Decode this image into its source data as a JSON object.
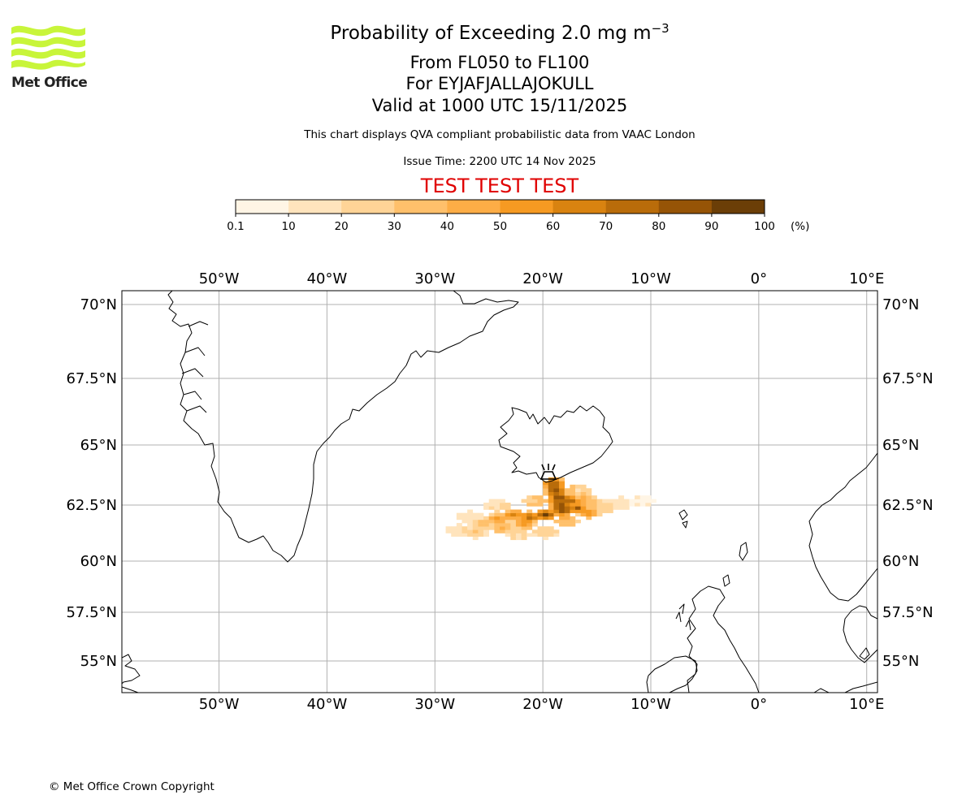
{
  "header": {
    "logo_text": "Met Office",
    "title_main": "Probability of Exceeding 2.0 mg m",
    "title_sup": "−3",
    "title_levels": "From FL050 to FL100",
    "title_volcano": "For EYJAFJALLAJOKULL",
    "title_valid": "Valid at 1000 UTC 15/11/2025",
    "subtitle": "This chart displays QVA compliant probabilistic data from VAAC London",
    "issue_time": "Issue Time: 2200 UTC 14 Nov 2025",
    "warning": "TEST TEST TEST"
  },
  "colorbar": {
    "ticks": [
      "0.1",
      "10",
      "20",
      "30",
      "40",
      "50",
      "60",
      "70",
      "80",
      "90",
      "100"
    ],
    "unit": "(%)",
    "colors": [
      "#fff5e5",
      "#ffe4bd",
      "#ffd497",
      "#ffc06b",
      "#fdad46",
      "#f69a22",
      "#d98310",
      "#b96c0a",
      "#965406",
      "#6b3e07"
    ]
  },
  "map": {
    "lon_labels": [
      "50°W",
      "40°W",
      "30°W",
      "20°W",
      "10°W",
      "0°",
      "10°E"
    ],
    "lat_labels": [
      "70°N",
      "67.5°N",
      "65°N",
      "62.5°N",
      "60°N",
      "57.5°N",
      "55°N"
    ],
    "volcano_icon": "volcano-icon",
    "colors": {
      "grid": "#b0b0b0",
      "coast": "#000000",
      "frame": "#000000"
    }
  },
  "chart_data": {
    "type": "heatmap",
    "title": "Probability of Exceeding 2.0 mg m−3",
    "unit": "%",
    "lon_range": [
      -59,
      11
    ],
    "lat_range": [
      53.5,
      70.5
    ],
    "volcano": {
      "name": "EYJAFJALLAJOKULL",
      "lon": -19.6,
      "lat": 63.6
    },
    "plume_cells": [
      {
        "lon": -19.2,
        "lat": 63.3,
        "p": 85
      },
      {
        "lon": -19.0,
        "lat": 63.0,
        "p": 95
      },
      {
        "lon": -18.8,
        "lat": 62.7,
        "p": 98
      },
      {
        "lon": -18.6,
        "lat": 62.4,
        "p": 98
      },
      {
        "lon": -18.4,
        "lat": 62.2,
        "p": 95
      },
      {
        "lon": -17.8,
        "lat": 62.6,
        "p": 80
      },
      {
        "lon": -17.0,
        "lat": 62.3,
        "p": 85
      },
      {
        "lon": -16.5,
        "lat": 62.6,
        "p": 45
      },
      {
        "lon": -16.0,
        "lat": 62.1,
        "p": 60
      },
      {
        "lon": -15.5,
        "lat": 62.5,
        "p": 25
      },
      {
        "lon": -14.5,
        "lat": 62.3,
        "p": 20
      },
      {
        "lon": -13.0,
        "lat": 62.5,
        "p": 8
      },
      {
        "lon": -11.0,
        "lat": 62.6,
        "p": 5
      },
      {
        "lon": -20.0,
        "lat": 62.0,
        "p": 98
      },
      {
        "lon": -21.5,
        "lat": 61.9,
        "p": 80
      },
      {
        "lon": -23.0,
        "lat": 62.0,
        "p": 65
      },
      {
        "lon": -22.0,
        "lat": 61.6,
        "p": 60
      },
      {
        "lon": -24.5,
        "lat": 61.8,
        "p": 55
      },
      {
        "lon": -24.0,
        "lat": 61.4,
        "p": 45
      },
      {
        "lon": -26.0,
        "lat": 61.6,
        "p": 35
      },
      {
        "lon": -26.5,
        "lat": 61.2,
        "p": 30
      },
      {
        "lon": -28.0,
        "lat": 61.3,
        "p": 18
      },
      {
        "lon": -27.0,
        "lat": 61.9,
        "p": 10
      },
      {
        "lon": -24.5,
        "lat": 62.4,
        "p": 10
      },
      {
        "lon": -21.0,
        "lat": 62.6,
        "p": 15
      },
      {
        "lon": -20.0,
        "lat": 61.2,
        "p": 20
      },
      {
        "lon": -18.0,
        "lat": 61.7,
        "p": 30
      },
      {
        "lon": -17.0,
        "lat": 63.0,
        "p": 10
      },
      {
        "lon": -22.5,
        "lat": 61.1,
        "p": 12
      }
    ]
  },
  "footer": {
    "copyright": "© Met Office Crown Copyright"
  }
}
